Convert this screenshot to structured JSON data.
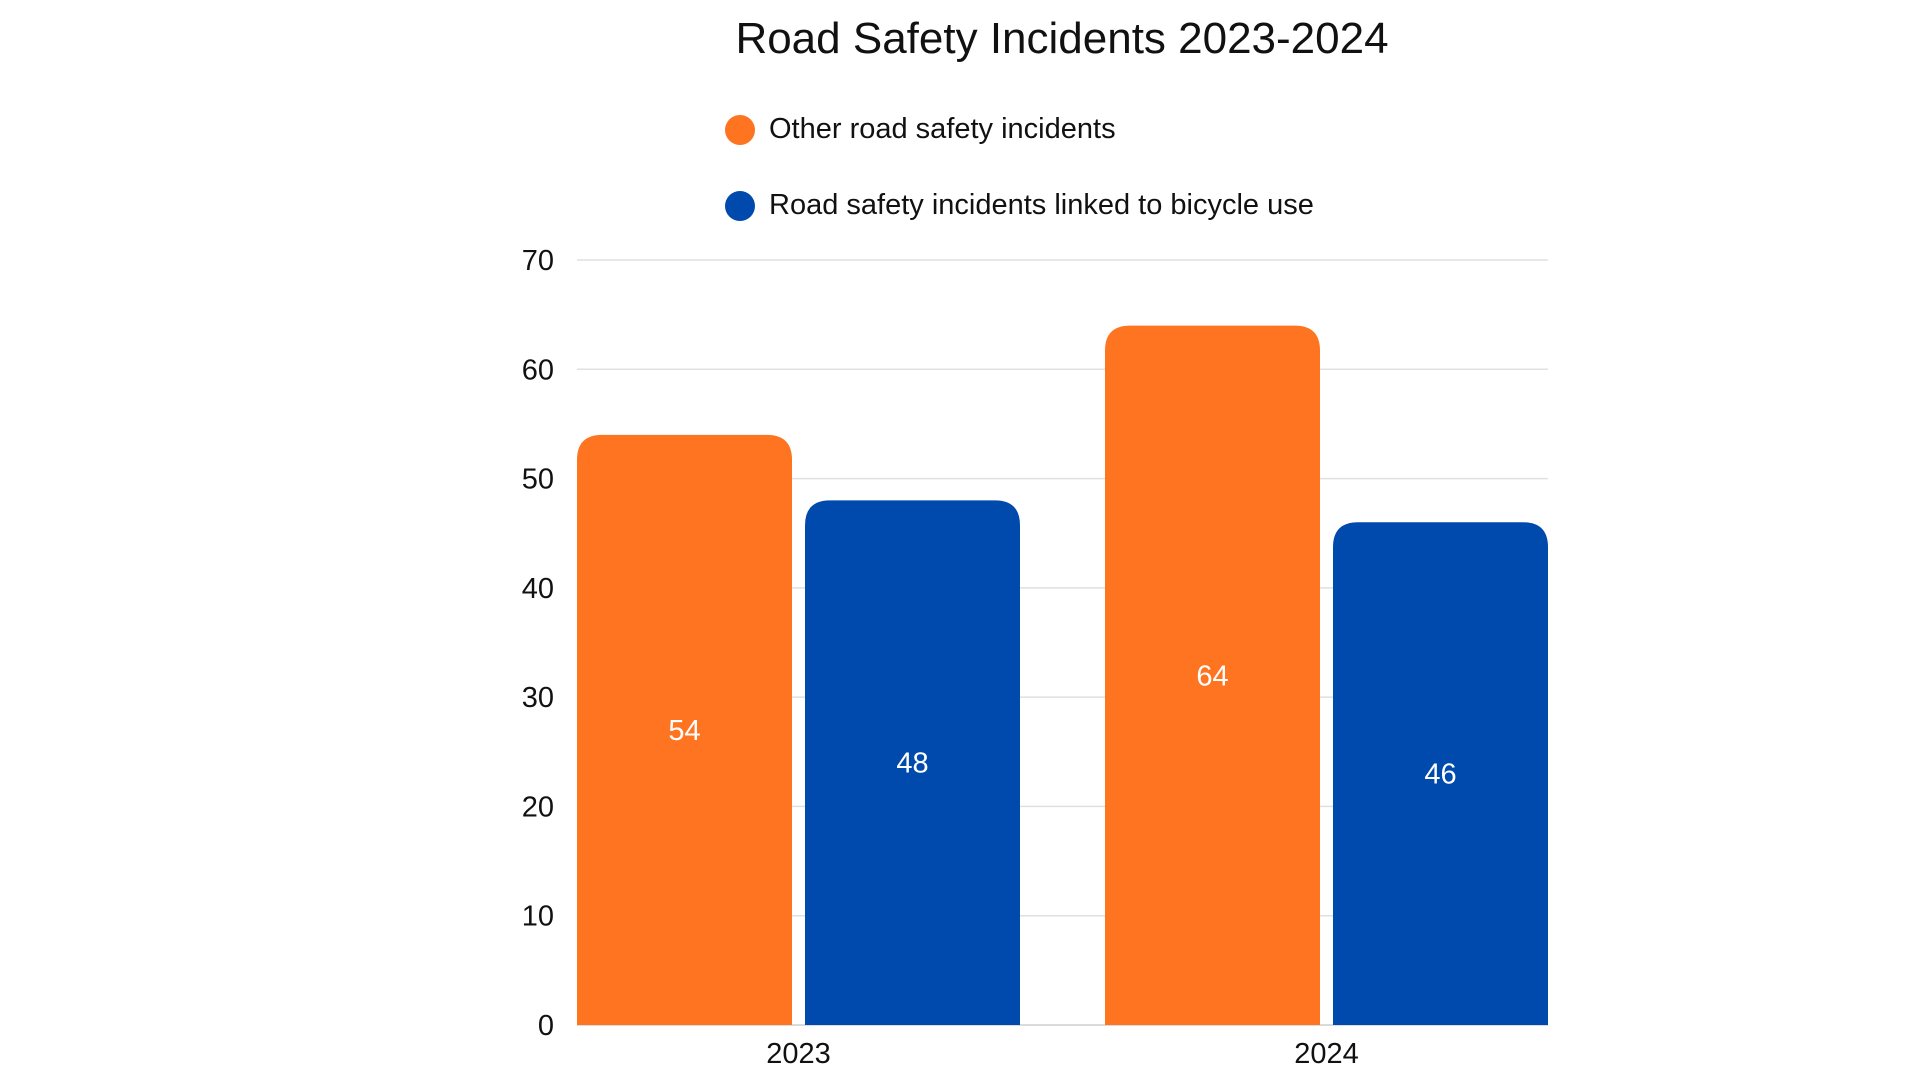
{
  "chart_data": {
    "type": "bar",
    "title": "Road Safety Incidents 2023-2024",
    "categories": [
      "2023",
      "2024"
    ],
    "series": [
      {
        "name": "Other road safety incidents",
        "values": [
          54,
          64
        ],
        "color": "#FF7420"
      },
      {
        "name": "Road safety incidents linked to bicycle use",
        "values": [
          48,
          46
        ],
        "color": "#004AAD"
      }
    ],
    "ylim": [
      0,
      70
    ],
    "yticks": [
      0,
      10,
      20,
      30,
      40,
      50,
      60,
      70
    ],
    "grid": true,
    "legend": "top",
    "data_labels": true
  }
}
